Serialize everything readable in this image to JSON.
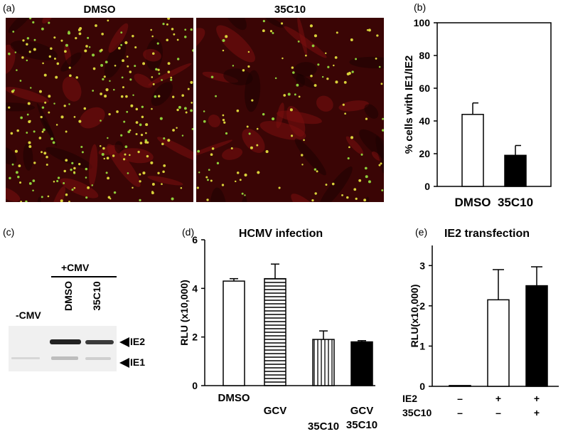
{
  "panel_a": {
    "label": "(a)",
    "images": [
      {
        "title": "DMSO",
        "cell_density": "high"
      },
      {
        "title": "35C10",
        "cell_density": "low"
      }
    ]
  },
  "panel_c": {
    "label": "(c)",
    "header": "+CMV",
    "lanes": [
      "-CMV",
      "DMSO",
      "35C10"
    ],
    "bands": [
      "IE2",
      "IE1"
    ]
  },
  "chart_data": [
    {
      "id": "b",
      "label": "(b)",
      "type": "bar",
      "title": "",
      "ylabel": "% cells with IE1/IE2",
      "ylim": [
        0,
        100
      ],
      "yticks": [
        0,
        20,
        40,
        60,
        80,
        100
      ],
      "categories": [
        "DMSO",
        "35C10"
      ],
      "values": [
        44,
        19
      ],
      "errors": [
        7,
        6
      ],
      "fills": [
        "white",
        "black"
      ]
    },
    {
      "id": "d",
      "label": "(d)",
      "type": "bar",
      "title": "HCMV infection",
      "ylabel": "RLU (x10,000)",
      "ylim": [
        0,
        6
      ],
      "yticks": [
        0,
        2,
        4,
        6
      ],
      "categories": [
        "DMSO",
        "GCV",
        "35C10",
        "GCV\n35C10"
      ],
      "values": [
        4.3,
        4.4,
        1.9,
        1.8
      ],
      "errors": [
        0.1,
        0.6,
        0.35,
        0.05
      ],
      "fills": [
        "white",
        "hstripes",
        "vstripes",
        "black"
      ]
    },
    {
      "id": "e",
      "label": "(e)",
      "type": "bar",
      "title": "IE2 transfection",
      "ylabel": "RLU(x10,000)",
      "ylim": [
        0,
        3.5
      ],
      "yticks": [
        0,
        1,
        2,
        3
      ],
      "categories": [
        "",
        "",
        ""
      ],
      "values": [
        0.02,
        2.15,
        2.5
      ],
      "errors": [
        0,
        0.75,
        0.47
      ],
      "fills": [
        "white",
        "white",
        "black"
      ],
      "conditions": [
        {
          "name": "IE2",
          "signs": [
            "–",
            "+",
            "+"
          ]
        },
        {
          "name": "35C10",
          "signs": [
            "–",
            "–",
            "+"
          ]
        }
      ]
    }
  ]
}
